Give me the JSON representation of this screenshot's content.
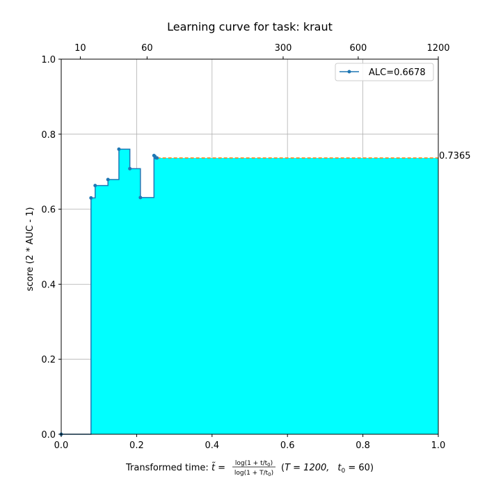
{
  "chart_data": {
    "type": "area",
    "title": "Learning curve for task: kraut",
    "ylabel": "score (2 * AUC - 1)",
    "xlabel": {
      "prefix": "Transformed time: ",
      "t_tilde": "t̃",
      "equals": " = ",
      "num": "log(1 + t/t",
      "num_sub": "0",
      "num_close": ")",
      "den": "log(1 + T/t",
      "den_sub": "0",
      "den_close": ")",
      "params_open": "(",
      "T_part": "T = 1200,",
      "t0_t": "t",
      "t0_sub": "0",
      "t0_val": " = 60)"
    },
    "xlim": [
      0,
      1
    ],
    "ylim": [
      0,
      1
    ],
    "x_ticks": [
      "0.0",
      "0.2",
      "0.4",
      "0.6",
      "0.8",
      "1.0"
    ],
    "y_ticks": [
      "0.0",
      "0.2",
      "0.4",
      "0.6",
      "0.8",
      "1.0"
    ],
    "top_ticks": [
      {
        "t": 10,
        "label": "10"
      },
      {
        "t": 60,
        "label": "60"
      },
      {
        "t": 300,
        "label": "300"
      },
      {
        "t": 600,
        "label": "600"
      },
      {
        "t": 1200,
        "label": "1200"
      }
    ],
    "time_budget_T": 1200,
    "t0": 60,
    "grid": true,
    "legend": {
      "label": "ALC=0.6678",
      "placement": "top-right"
    },
    "series": [
      {
        "name": "ALC=0.6678",
        "color": "#1f77b4",
        "fill_color": "#00ffff",
        "points": [
          {
            "x": 0.0,
            "y": 0.0
          },
          {
            "x": 0.079,
            "y": 0.63
          },
          {
            "x": 0.09,
            "y": 0.663
          },
          {
            "x": 0.124,
            "y": 0.679
          },
          {
            "x": 0.153,
            "y": 0.76
          },
          {
            "x": 0.182,
            "y": 0.708
          },
          {
            "x": 0.21,
            "y": 0.631
          },
          {
            "x": 0.246,
            "y": 0.743
          },
          {
            "x": 0.251,
            "y": 0.737
          },
          {
            "x": 0.254,
            "y": 0.7365
          }
        ]
      }
    ],
    "final_score": {
      "value": 0.7365,
      "label": "0.7365",
      "line_color": "#ff7f0e",
      "line_style": "dashed"
    }
  }
}
